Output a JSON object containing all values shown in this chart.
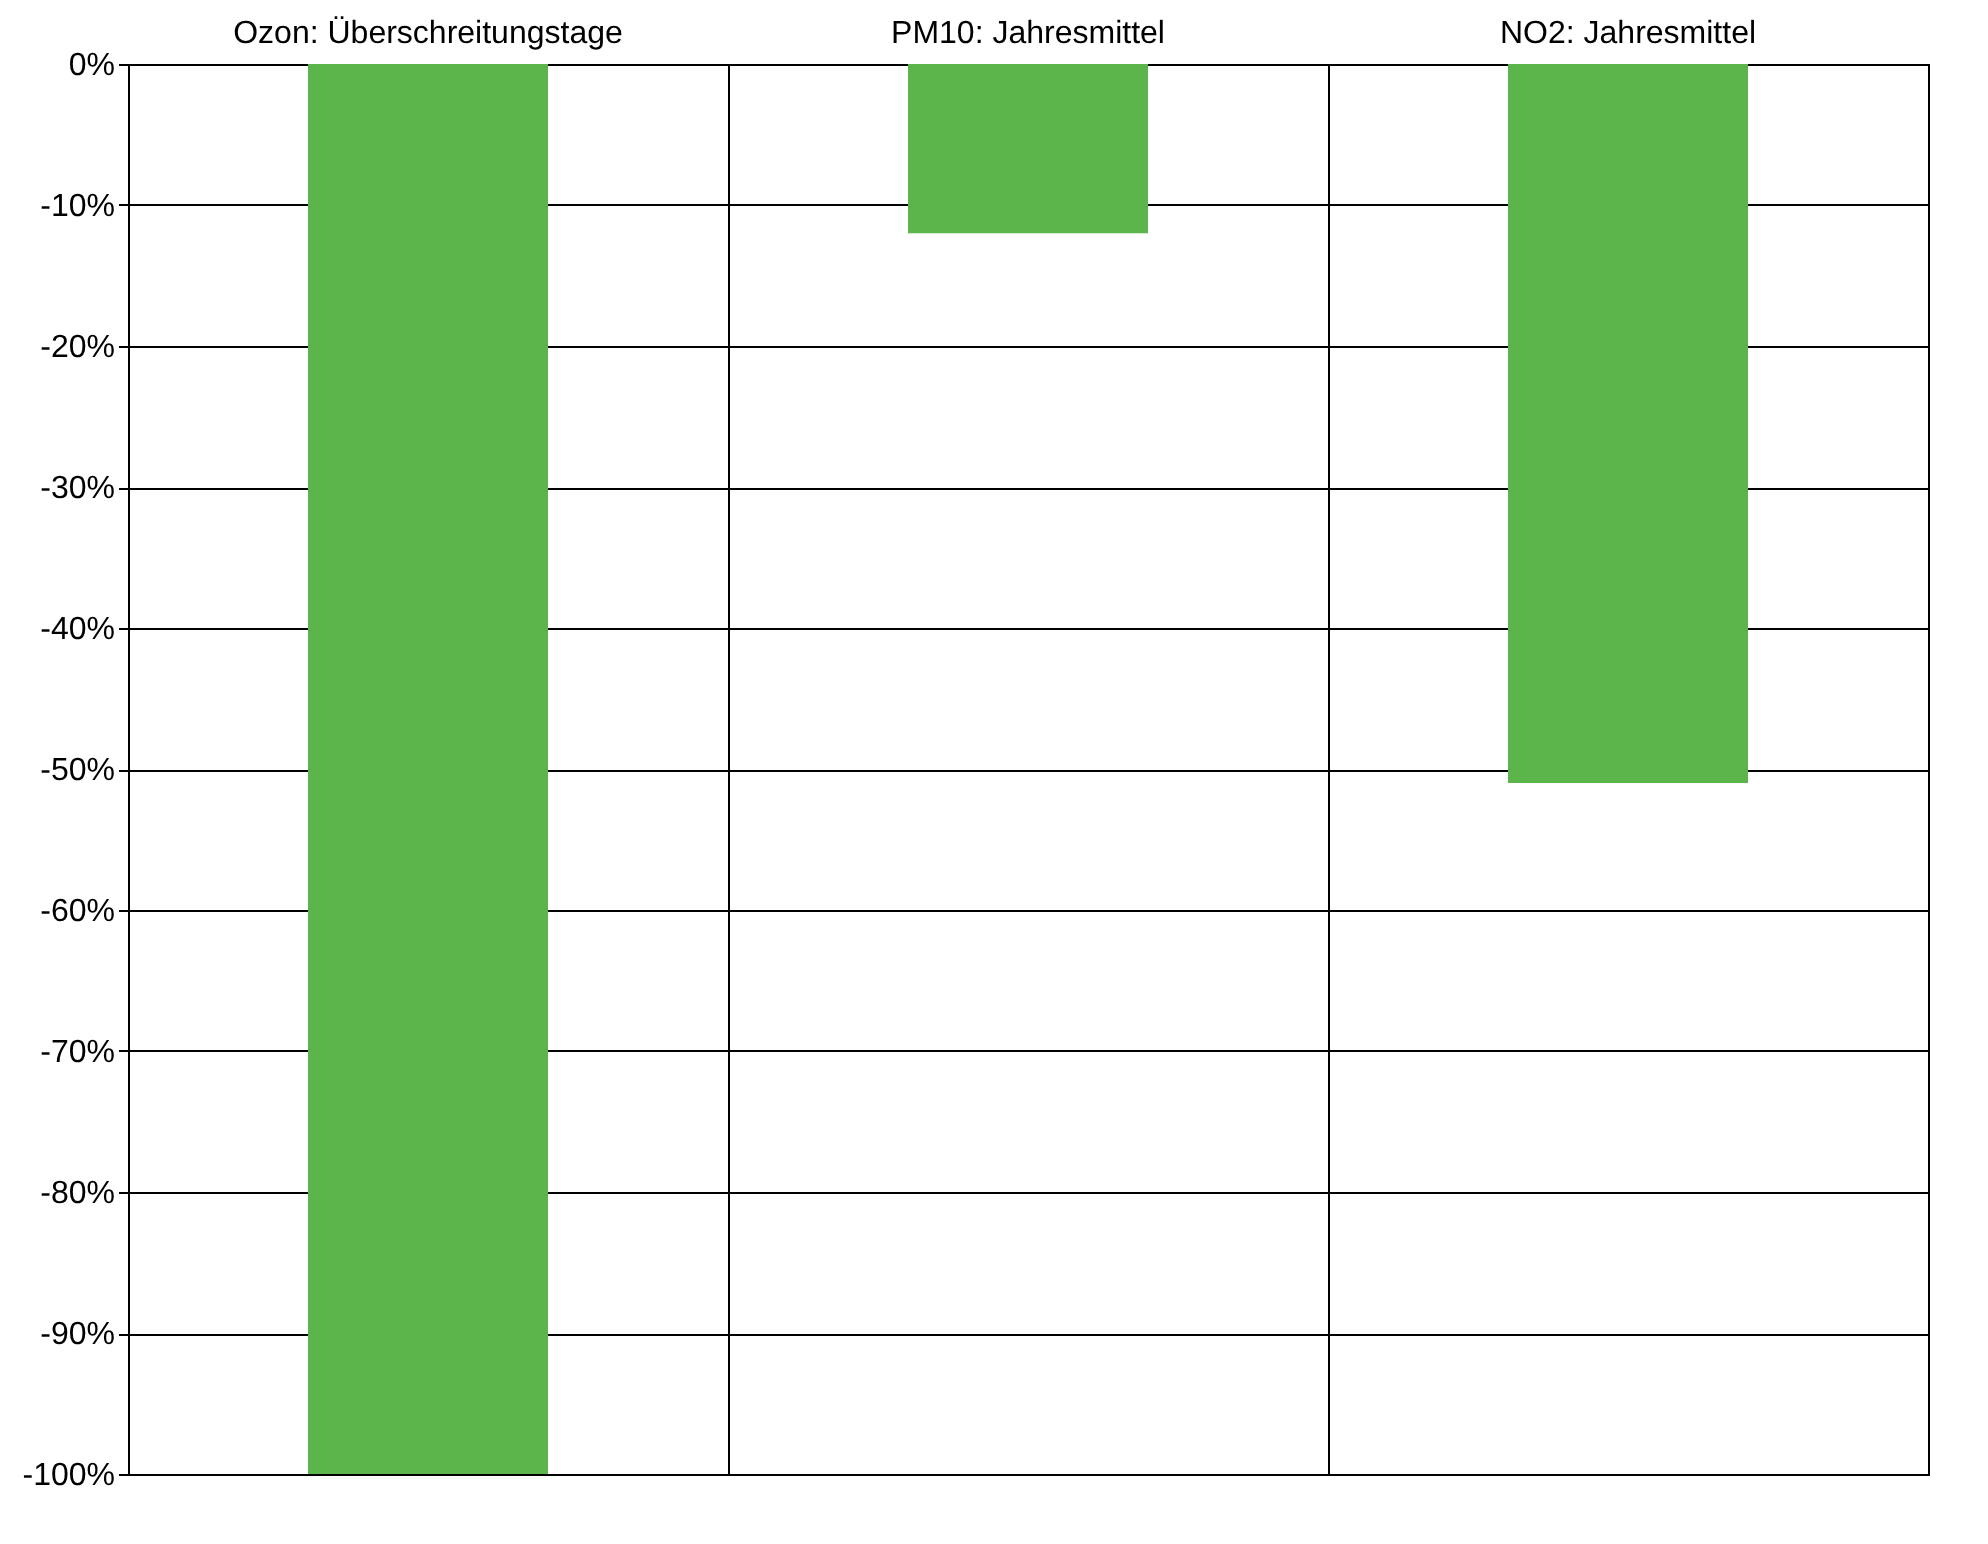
{
  "chart_data": {
    "type": "bar",
    "categories": [
      "Ozon: Überschreitungstage",
      "PM10: Jahresmittel",
      "NO2: Jahresmittel"
    ],
    "values": [
      -100,
      -12,
      -51
    ],
    "color": "#5bb54a",
    "ylim": [
      -100,
      0
    ],
    "yticks": [
      {
        "value": 0,
        "label": "0%"
      },
      {
        "value": -10,
        "label": "-10%"
      },
      {
        "value": -20,
        "label": "-20%"
      },
      {
        "value": -30,
        "label": "-30%"
      },
      {
        "value": -40,
        "label": "-40%"
      },
      {
        "value": -50,
        "label": "-50%"
      },
      {
        "value": -60,
        "label": "-60%"
      },
      {
        "value": -70,
        "label": "-70%"
      },
      {
        "value": -80,
        "label": "-80%"
      },
      {
        "value": -90,
        "label": "-90%"
      },
      {
        "value": -100,
        "label": "-100%"
      }
    ],
    "grid": true
  }
}
